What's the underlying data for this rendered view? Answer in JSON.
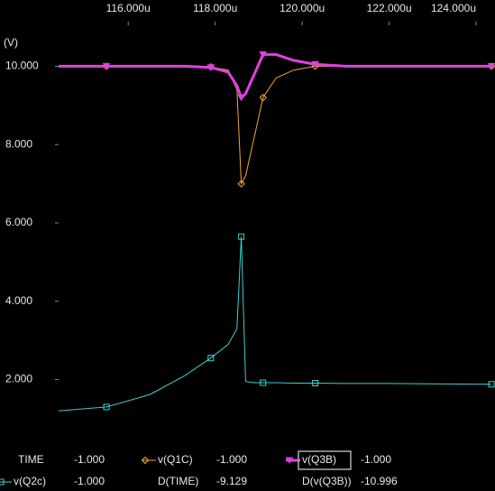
{
  "chart_data": {
    "type": "line",
    "ylabel": "(V)",
    "xlim": [
      114.4,
      124.35
    ],
    "ylim": [
      0.4,
      11
    ],
    "xticks": [
      {
        "value": 116,
        "label": "116.000u"
      },
      {
        "value": 118,
        "label": "118.000u"
      },
      {
        "value": 120,
        "label": "120.000u"
      },
      {
        "value": 122,
        "label": "122.000u"
      },
      {
        "value": 124,
        "label": "124.000u"
      }
    ],
    "yticks": [
      {
        "value": 2,
        "label": "2.000"
      },
      {
        "value": 4,
        "label": "4.000"
      },
      {
        "value": 6,
        "label": "6.000"
      },
      {
        "value": 8,
        "label": "8.000"
      },
      {
        "value": 10,
        "label": "10.000"
      }
    ],
    "x": [
      114.4,
      115.5,
      116.5,
      117.3,
      117.9,
      118.3,
      118.5,
      118.6,
      118.7,
      118.9,
      119.1,
      119.4,
      119.8,
      120.3,
      121,
      122,
      124.35
    ],
    "series": [
      {
        "name": "v(Q1C)",
        "color": "#f0a830",
        "marker": "diamond",
        "width": 1,
        "cursor_value": "-1.000",
        "values": [
          10,
          10,
          10,
          10,
          9.98,
          9.9,
          9.4,
          7.0,
          7.2,
          8.2,
          9.2,
          9.7,
          9.9,
          10,
          10,
          10,
          10
        ]
      },
      {
        "name": "v(Q3B)",
        "color": "#e040e0",
        "marker": "triangle",
        "width": 3,
        "selected": true,
        "cursor_value": "-1.000",
        "values": [
          10,
          10,
          10,
          10,
          9.97,
          9.85,
          9.5,
          9.2,
          9.3,
          9.8,
          10.3,
          10.3,
          10.15,
          10.05,
          10,
          10,
          10
        ]
      },
      {
        "name": "v(Q2c)",
        "color": "#40d0d0",
        "marker": "square",
        "width": 1,
        "cursor_value": "-1.000",
        "values": [
          1.2,
          1.3,
          1.62,
          2.1,
          2.55,
          2.9,
          3.3,
          5.65,
          1.95,
          1.92,
          1.92,
          1.92,
          1.91,
          1.91,
          1.9,
          1.9,
          1.88
        ]
      }
    ],
    "readout": [
      {
        "label": "TIME",
        "value": "-1.000",
        "color": "#2a2aff"
      },
      {
        "label": "D(TIME)",
        "value": "-9.129",
        "color": "#e02828"
      },
      {
        "label": "D(v(Q3B))",
        "value": "-10.996",
        "color": "#e02828"
      }
    ]
  }
}
